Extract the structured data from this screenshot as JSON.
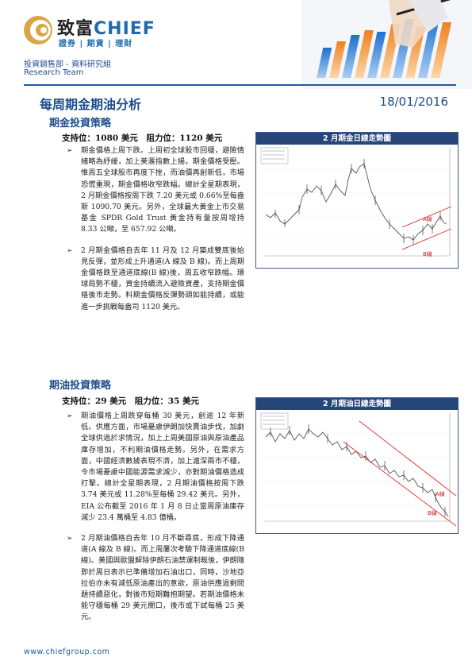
{
  "header": {
    "brand_cn": "致富",
    "brand_en": "CHIEF",
    "brand_sub": "證券 | 期貨 | 理財",
    "dept_line1": "投資銷售部 - 資料研究組",
    "dept_line2": "Research Team",
    "title": "每周期金期油分析",
    "date": "18/01/2016"
  },
  "gold": {
    "section_title": "期金投資策略",
    "levels": "支持位：1080 美元　阻力位：1120 美元",
    "bullet_marker": "➢",
    "paragraphs": [
      "期金價格上周下跌。上周初全球股市回穩，避險情緒略為紓緩，加上美滙指數上揚，期金價格受壓。惟周五全球股市再度下挫，而油價再創新低，市場恐慌重現，期金價格收窄跌幅。總計全星期表現，2 月期金價格按周下跌 7.20 美元或 0.66%至每盎斯 1090.70 美元。另外，全球最大黃金上市交易基金 SPDR Gold Trust 黃金持有量按周增持 8.33 公噸，至 657.92 公噸。",
      "2 月期金價格自去年 11 月及 12 月築成雙底後始見反彈，並形成上升通道(A 線及 B 線)。而上周期金價格跌至通道底線(B 線)後，周五收窄跌幅。環球局勢不穩，資金持續流入避險資產，支持期金價格後市走勢。料期金價格反彈勢頭如能持續，或能進一步挑戰每盎司 1120 美元。"
    ],
    "chart": {
      "title": "2 月期金日線走勢圖",
      "line_a": "A線",
      "line_b": "B線",
      "line_color": "#e03030"
    }
  },
  "oil": {
    "section_title": "期油投資策略",
    "levels": "支持位：29 美元　阻力位：35 美元",
    "bullet_marker": "➢",
    "paragraphs": [
      "期油價格上周跌穿每桶 30 美元，創逾 12 年新低。供應方面，市場憂慮伊朗加快賣油步伐，加劇全球供過於求情況，加上上周美國原油與原油產品庫存增加，不利期油價格走勢。另外，在需求方面，中國經濟數據表現不濟，加上滬深兩市不穩，令市場憂慮中國能源需求減少，亦對期油價格造成打擊。總計全星期表現，2 月期油價格按周下跌 3.74 美元或 11.28%至每桶 29.42 美元。另外，EIA 公布截至 2016 年 1 月 8 日止當周原油庫存減少 23.4 萬桶至 4.83 億桶。",
      "2 月期油價格自去年 10 月不斷尋底，形成下降通道(A 線及 B 線)。而上周屢次考驗下降通道底線(B 線)。美國與歐盟解除伊朗石油禁運制裁後，伊朗隨即於周日表示已準備增加石油出口，同時，沙地亞拉伯亦未有減低原油產出的意欲，原油供應過剩問題持續惡化，對後市短期難抱期望。若期油價格未能守穩每桶 29 美元關口，後市或下試每桶 25 美元。"
    ],
    "chart": {
      "title": "2 月期油日線走勢圖",
      "line_a": "A線",
      "line_b": "B線",
      "line_color": "#e03030"
    }
  },
  "footer": {
    "url": "www.chiefgroup.com"
  }
}
